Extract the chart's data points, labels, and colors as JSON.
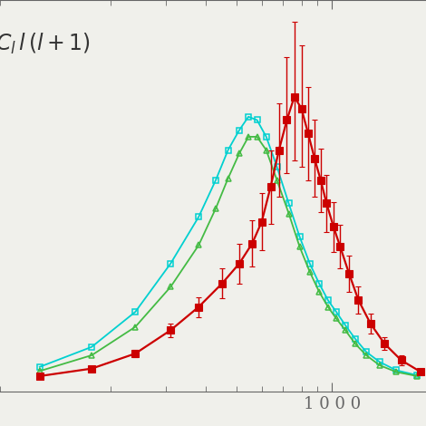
{
  "background_color": "#f0f0eb",
  "red_x": [
    120,
    175,
    240,
    310,
    380,
    450,
    510,
    560,
    600,
    640,
    680,
    720,
    760,
    800,
    840,
    880,
    920,
    960,
    1010,
    1060,
    1130,
    1210,
    1320,
    1460,
    1650,
    1900
  ],
  "red_y": [
    0.045,
    0.09,
    0.18,
    0.32,
    0.46,
    0.6,
    0.72,
    0.84,
    0.97,
    1.18,
    1.4,
    1.58,
    1.72,
    1.65,
    1.5,
    1.35,
    1.22,
    1.08,
    0.94,
    0.82,
    0.66,
    0.5,
    0.36,
    0.24,
    0.14,
    0.07
  ],
  "red_yerr_lo": [
    0.005,
    0.01,
    0.02,
    0.04,
    0.06,
    0.09,
    0.12,
    0.14,
    0.17,
    0.22,
    0.28,
    0.32,
    0.38,
    0.35,
    0.28,
    0.23,
    0.19,
    0.17,
    0.15,
    0.13,
    0.11,
    0.08,
    0.06,
    0.04,
    0.03,
    0.015
  ],
  "red_yerr_hi": [
    0.005,
    0.01,
    0.02,
    0.04,
    0.06,
    0.09,
    0.12,
    0.14,
    0.17,
    0.22,
    0.28,
    0.38,
    0.45,
    0.38,
    0.28,
    0.23,
    0.19,
    0.17,
    0.15,
    0.13,
    0.11,
    0.08,
    0.06,
    0.04,
    0.03,
    0.015
  ],
  "cyan_x": [
    120,
    175,
    240,
    310,
    380,
    430,
    470,
    510,
    545,
    580,
    620,
    670,
    730,
    790,
    850,
    910,
    970,
    1030,
    1100,
    1180,
    1280,
    1410,
    1590,
    1850
  ],
  "cyan_y": [
    0.1,
    0.22,
    0.43,
    0.72,
    1.0,
    1.22,
    1.4,
    1.52,
    1.6,
    1.58,
    1.48,
    1.3,
    1.08,
    0.88,
    0.72,
    0.6,
    0.5,
    0.43,
    0.35,
    0.27,
    0.19,
    0.13,
    0.08,
    0.05
  ],
  "green_x": [
    120,
    175,
    240,
    310,
    380,
    430,
    470,
    510,
    545,
    580,
    620,
    670,
    730,
    790,
    850,
    910,
    970,
    1030,
    1100,
    1180,
    1280,
    1410,
    1590,
    1850
  ],
  "green_y": [
    0.075,
    0.17,
    0.34,
    0.58,
    0.83,
    1.05,
    1.23,
    1.38,
    1.48,
    1.48,
    1.4,
    1.22,
    1.02,
    0.82,
    0.67,
    0.55,
    0.46,
    0.39,
    0.32,
    0.24,
    0.17,
    0.11,
    0.07,
    0.045
  ],
  "red_color": "#cc0000",
  "cyan_color": "#00d0d0",
  "green_color": "#44bb44",
  "xlim_left": 90,
  "xlim_right": 2100,
  "ylim_bottom": -0.05,
  "ylim_top": 2.3,
  "tick_color": "#666666",
  "label_color": "#333333",
  "figsize": [
    4.7,
    4.7
  ],
  "dpi": 100
}
